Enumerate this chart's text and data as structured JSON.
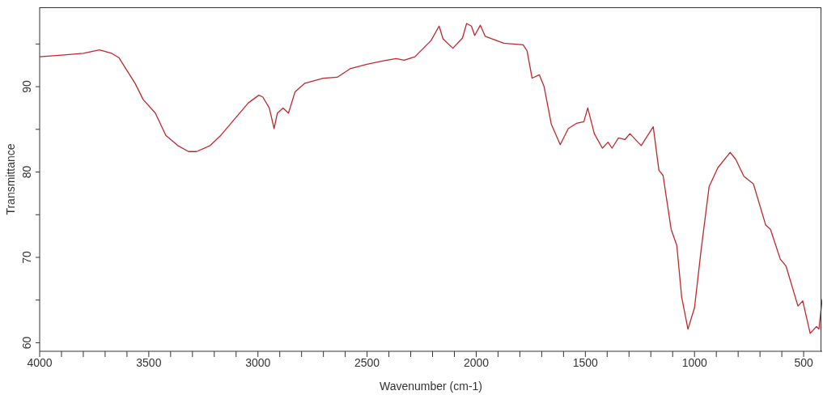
{
  "chart_data": {
    "type": "line",
    "xlabel": "Wavenumber (cm-1)",
    "ylabel": "Transmittance",
    "xlim": [
      4000,
      415
    ],
    "ylim": [
      59,
      99.3
    ],
    "xticks": [
      {
        "value": 4000,
        "label": "4000"
      },
      {
        "value": 3900,
        "label": null
      },
      {
        "value": 3800,
        "label": null
      },
      {
        "value": 3700,
        "label": null
      },
      {
        "value": 3600,
        "label": null
      },
      {
        "value": 3500,
        "label": "3500"
      },
      {
        "value": 3400,
        "label": null
      },
      {
        "value": 3300,
        "label": null
      },
      {
        "value": 3200,
        "label": null
      },
      {
        "value": 3100,
        "label": null
      },
      {
        "value": 3000,
        "label": "3000"
      },
      {
        "value": 2900,
        "label": null
      },
      {
        "value": 2800,
        "label": null
      },
      {
        "value": 2700,
        "label": null
      },
      {
        "value": 2600,
        "label": null
      },
      {
        "value": 2500,
        "label": "2500"
      },
      {
        "value": 2400,
        "label": null
      },
      {
        "value": 2300,
        "label": null
      },
      {
        "value": 2200,
        "label": null
      },
      {
        "value": 2100,
        "label": null
      },
      {
        "value": 2000,
        "label": "2000"
      },
      {
        "value": 1900,
        "label": null
      },
      {
        "value": 1800,
        "label": null
      },
      {
        "value": 1700,
        "label": null
      },
      {
        "value": 1600,
        "label": null
      },
      {
        "value": 1500,
        "label": "1500"
      },
      {
        "value": 1400,
        "label": null
      },
      {
        "value": 1300,
        "label": null
      },
      {
        "value": 1200,
        "label": null
      },
      {
        "value": 1100,
        "label": null
      },
      {
        "value": 1000,
        "label": "1000"
      },
      {
        "value": 900,
        "label": null
      },
      {
        "value": 800,
        "label": null
      },
      {
        "value": 700,
        "label": null
      },
      {
        "value": 600,
        "label": null
      },
      {
        "value": 500,
        "label": "500"
      }
    ],
    "yticks": [
      {
        "value": 60,
        "label": "60"
      },
      {
        "value": 65,
        "label": null
      },
      {
        "value": 70,
        "label": "70"
      },
      {
        "value": 75,
        "label": null
      },
      {
        "value": 80,
        "label": "80"
      },
      {
        "value": 85,
        "label": null
      },
      {
        "value": 90,
        "label": "90"
      },
      {
        "value": 95,
        "label": null
      }
    ],
    "grid": false,
    "marker": "none",
    "line_style": "solid",
    "x": [
      4000,
      3900,
      3800,
      3726,
      3670,
      3637,
      3600,
      3563,
      3526,
      3470,
      3422,
      3367,
      3318,
      3281,
      3219,
      3170,
      3107,
      3044,
      2996,
      2978,
      2948,
      2926,
      2911,
      2885,
      2860,
      2830,
      2785,
      2700,
      2637,
      2578,
      2504,
      2430,
      2367,
      2330,
      2281,
      2207,
      2170,
      2152,
      2107,
      2063,
      2044,
      2022,
      2007,
      1981,
      1959,
      1874,
      1785,
      1767,
      1744,
      1711,
      1689,
      1656,
      1615,
      1578,
      1541,
      1507,
      1489,
      1459,
      1422,
      1396,
      1378,
      1348,
      1319,
      1296,
      1244,
      1189,
      1163,
      1144,
      1107,
      1081,
      1059,
      1030,
      1000,
      970,
      933,
      893,
      837,
      811,
      774,
      730,
      674,
      652,
      607,
      581,
      526,
      504,
      470,
      441,
      430,
      415
    ],
    "series": [
      {
        "color": "#c0282d",
        "values": [
          93.5,
          93.7,
          93.9,
          94.3,
          93.9,
          93.4,
          91.9,
          90.4,
          88.5,
          86.9,
          84.3,
          83.1,
          82.4,
          82.4,
          83.1,
          84.3,
          86.2,
          88.1,
          89.0,
          88.8,
          87.5,
          85.1,
          86.9,
          87.5,
          86.9,
          89.4,
          90.4,
          91.0,
          91.1,
          92.1,
          92.6,
          93.0,
          93.3,
          93.1,
          93.5,
          95.4,
          97.1,
          95.6,
          94.5,
          95.7,
          97.4,
          97.1,
          96.0,
          97.2,
          95.9,
          95.1,
          94.9,
          94.2,
          91.0,
          91.4,
          90.0,
          85.6,
          83.2,
          85.1,
          85.7,
          85.9,
          87.5,
          84.5,
          82.8,
          83.5,
          82.8,
          84.0,
          83.8,
          84.5,
          83.1,
          85.3,
          80.2,
          79.6,
          73.3,
          71.4,
          65.4,
          61.6,
          64.1,
          70.8,
          78.3,
          80.5,
          82.3,
          81.5,
          79.5,
          78.6,
          73.8,
          73.3,
          69.8,
          69.0,
          64.3,
          64.9,
          61.1,
          61.9,
          61.6,
          65.1
        ]
      }
    ]
  }
}
